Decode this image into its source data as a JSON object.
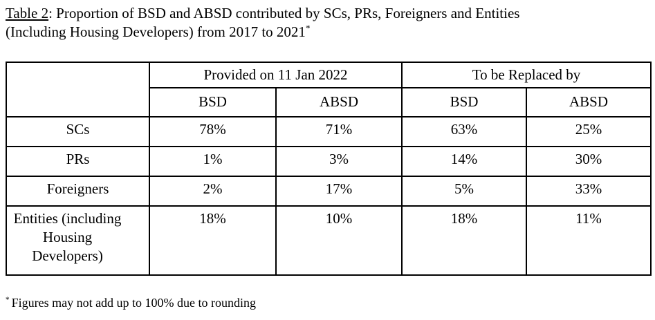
{
  "title": {
    "prefix": "Table 2",
    "line1_rest": ": Proportion of BSD and ABSD contributed by SCs, PRs, Foreigners and Entities",
    "line2": "(Including Housing Developers) from 2017 to 2021",
    "footnote_marker": "*"
  },
  "table": {
    "column_groups": [
      {
        "label": "Provided on 11 Jan 2022"
      },
      {
        "label": "To be Replaced by"
      }
    ],
    "sub_headers": [
      "BSD",
      "ABSD",
      "BSD",
      "ABSD"
    ],
    "rows": [
      {
        "label": "SCs",
        "values": [
          "78%",
          "71%",
          "63%",
          "25%"
        ]
      },
      {
        "label": "PRs",
        "values": [
          "1%",
          "3%",
          "14%",
          "30%"
        ]
      },
      {
        "label": "Foreigners",
        "values": [
          "2%",
          "17%",
          "5%",
          "33%"
        ]
      },
      {
        "label": "Entities (including Housing Developers)",
        "values": [
          "18%",
          "10%",
          "18%",
          "11%"
        ]
      }
    ]
  },
  "footnote": {
    "marker": "*",
    "text": "Figures may not add up to 100% due to rounding"
  },
  "colors": {
    "text": "#000000",
    "background": "#ffffff",
    "border": "#000000"
  }
}
